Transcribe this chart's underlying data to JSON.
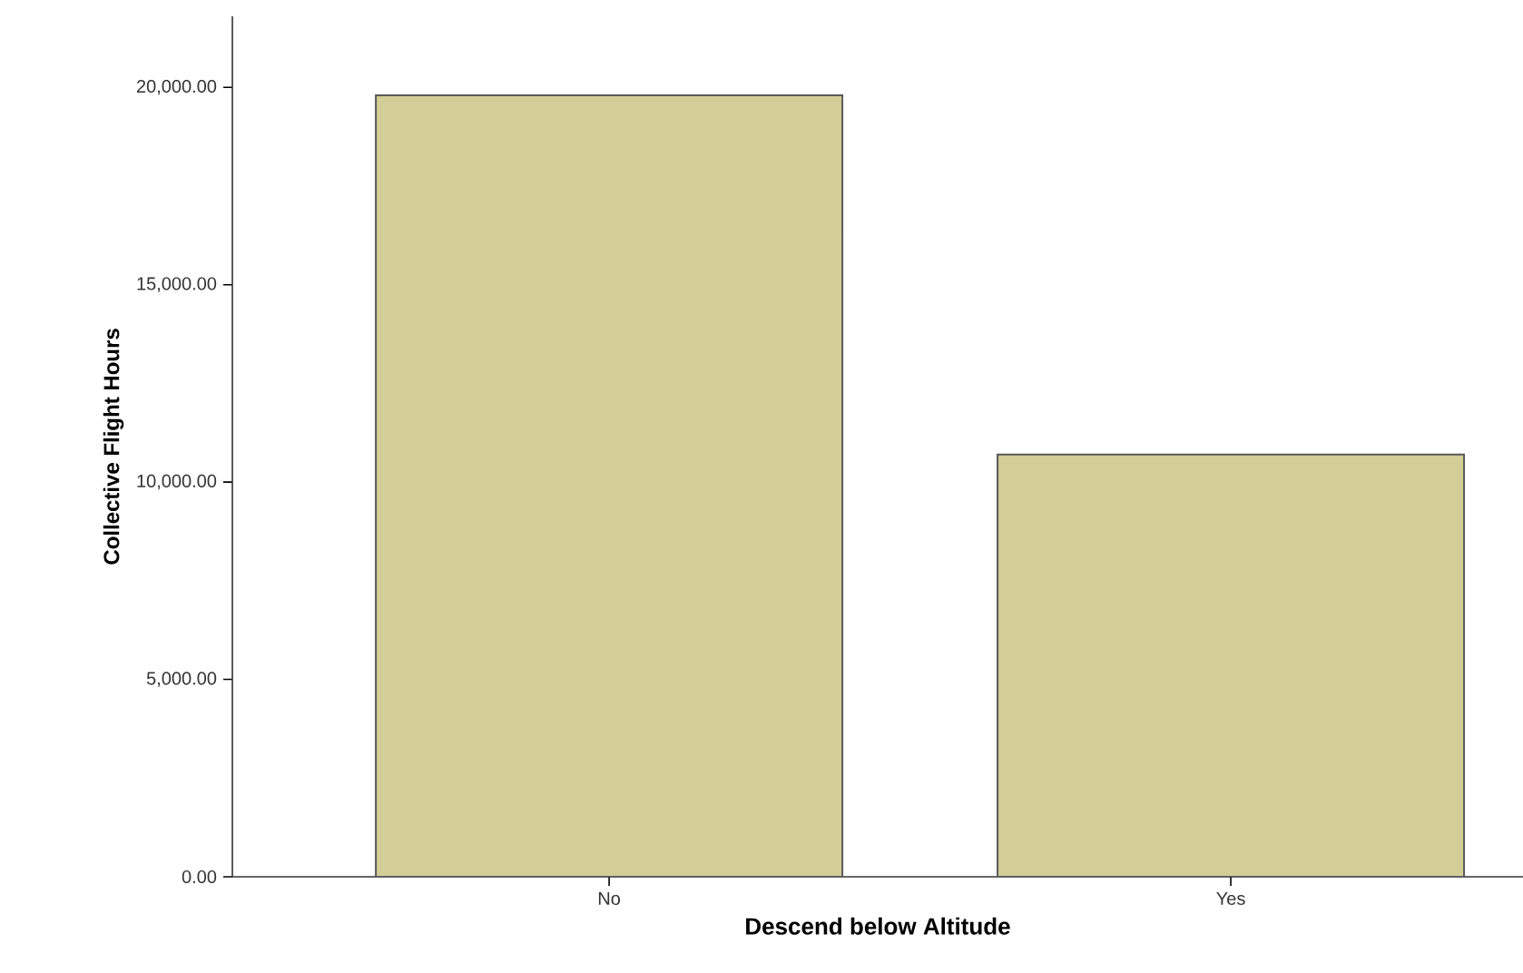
{
  "chart_data": {
    "type": "bar",
    "xlabel": "Descend below Altitude",
    "ylabel": "Collective Flight Hours",
    "categories": [
      "No",
      "Yes"
    ],
    "values": [
      19800,
      10700
    ],
    "color": "#d3cd97",
    "ylim": [
      0,
      21800
    ],
    "yticks": [
      {
        "value": 0,
        "label": "0.00"
      },
      {
        "value": 5000,
        "label": "5,000.00"
      },
      {
        "value": 10000,
        "label": "10,000.00"
      },
      {
        "value": 15000,
        "label": "15,000.00"
      },
      {
        "value": 20000,
        "label": "20,000.00"
      }
    ],
    "grid": false
  }
}
